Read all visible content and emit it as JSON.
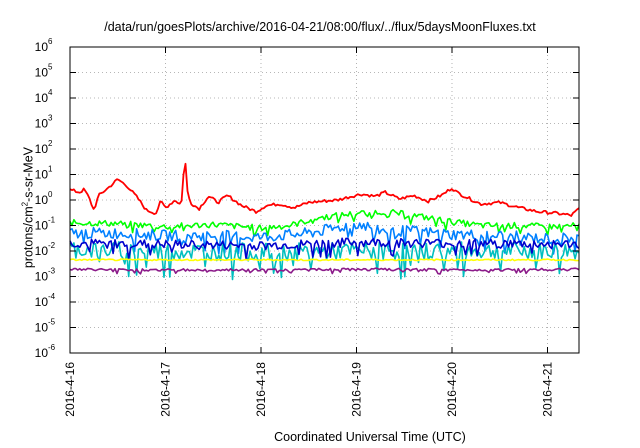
{
  "chart_data": {
    "type": "line",
    "title": "/data/run/goesPlots/archive/2016-04-21/08:00/flux/../flux/5daysMoonFluxes.txt",
    "xlabel": "Coordinated Universal Time (UTC)",
    "ylabel_main": "protons/cm",
    "ylabel_sup": "2",
    "ylabel_rest": "-s-sr-MeV",
    "y_scale": "log",
    "ylim": [
      1e-06,
      1000000.0
    ],
    "y_tick_base": "10",
    "y_tick_exponents": [
      "-6",
      "-5",
      "-4",
      "-3",
      "-2",
      "-1",
      "0",
      "1",
      "2",
      "3",
      "4",
      "5",
      "6"
    ],
    "x_ticks": [
      "2016-4-16",
      "2016-4-17",
      "2016-4-18",
      "2016-4-19",
      "2016-4-20",
      "2016-4-21"
    ],
    "xlim": [
      0,
      5.33
    ],
    "grid": true,
    "series": [
      {
        "color": "#ff0000",
        "points": [
          [
            0,
            2.5
          ],
          [
            0.1,
            2
          ],
          [
            0.15,
            2.6
          ],
          [
            0.2,
            1.2
          ],
          [
            0.25,
            0.4
          ],
          [
            0.3,
            1.5
          ],
          [
            0.4,
            3
          ],
          [
            0.5,
            6.5
          ],
          [
            0.6,
            3.5
          ],
          [
            0.7,
            1.3
          ],
          [
            0.8,
            0.4
          ],
          [
            0.9,
            0.3
          ],
          [
            0.95,
            0.9
          ],
          [
            1.0,
            0.5
          ],
          [
            1.1,
            1.0
          ],
          [
            1.15,
            0.7
          ],
          [
            1.18,
            1.1
          ],
          [
            1.2,
            180
          ],
          [
            1.22,
            3
          ],
          [
            1.26,
            0.8
          ],
          [
            1.35,
            0.45
          ],
          [
            1.45,
            1.4
          ],
          [
            1.55,
            0.8
          ],
          [
            1.65,
            1.5
          ],
          [
            1.8,
            0.6
          ],
          [
            1.95,
            0.35
          ],
          [
            2.05,
            0.6
          ],
          [
            2.2,
            0.7
          ],
          [
            2.35,
            0.5
          ],
          [
            2.5,
            0.8
          ],
          [
            2.65,
            0.9
          ],
          [
            2.8,
            1.0
          ],
          [
            2.95,
            1.4
          ],
          [
            3.05,
            1.7
          ],
          [
            3.2,
            1.4
          ],
          [
            3.3,
            2.0
          ],
          [
            3.45,
            1.1
          ],
          [
            3.6,
            1.5
          ],
          [
            3.75,
            0.9
          ],
          [
            3.9,
            1.6
          ],
          [
            4.0,
            3.0
          ],
          [
            4.05,
            2.0
          ],
          [
            4.15,
            1.3
          ],
          [
            4.3,
            0.7
          ],
          [
            4.5,
            0.8
          ],
          [
            4.7,
            0.5
          ],
          [
            4.9,
            0.35
          ],
          [
            5.1,
            0.3
          ],
          [
            5.25,
            0.25
          ],
          [
            5.33,
            0.45
          ]
        ]
      },
      {
        "color": "#00ff00",
        "points": [
          [
            0,
            0.13
          ],
          [
            0.5,
            0.12
          ],
          [
            1.0,
            0.09
          ],
          [
            1.5,
            0.11
          ],
          [
            2.0,
            0.08
          ],
          [
            2.3,
            0.1
          ],
          [
            2.6,
            0.2
          ],
          [
            3.0,
            0.3
          ],
          [
            3.3,
            0.35
          ],
          [
            3.6,
            0.25
          ],
          [
            4.0,
            0.14
          ],
          [
            4.3,
            0.1
          ],
          [
            4.7,
            0.1
          ],
          [
            5.0,
            0.09
          ],
          [
            5.33,
            0.1
          ]
        ]
      },
      {
        "color": "#0080ff",
        "points": [
          [
            0,
            0.05
          ],
          [
            0.5,
            0.05
          ],
          [
            1.0,
            0.04
          ],
          [
            1.5,
            0.04
          ],
          [
            2.0,
            0.035
          ],
          [
            2.5,
            0.05
          ],
          [
            2.8,
            0.08
          ],
          [
            3.0,
            0.12
          ],
          [
            3.3,
            0.06
          ],
          [
            3.6,
            0.06
          ],
          [
            4.0,
            0.045
          ],
          [
            4.5,
            0.04
          ],
          [
            5.0,
            0.03
          ],
          [
            5.33,
            0.035
          ]
        ]
      },
      {
        "color": "#00bfbf",
        "points": [
          [
            0,
            0.012
          ],
          [
            1.0,
            0.01
          ],
          [
            2.0,
            0.009
          ],
          [
            3.0,
            0.01
          ],
          [
            4.0,
            0.01
          ],
          [
            5.33,
            0.01
          ]
        ]
      },
      {
        "color": "#0000cd",
        "points": [
          [
            0,
            0.02
          ],
          [
            1.0,
            0.018
          ],
          [
            2.0,
            0.016
          ],
          [
            3.0,
            0.022
          ],
          [
            4.0,
            0.02
          ],
          [
            5.33,
            0.018
          ]
        ]
      },
      {
        "color": "#ffff00",
        "points": [
          [
            0,
            0.0045
          ],
          [
            1.0,
            0.0045
          ],
          [
            2.0,
            0.0045
          ],
          [
            3.0,
            0.0045
          ],
          [
            4.0,
            0.0045
          ],
          [
            5.33,
            0.0045
          ]
        ]
      },
      {
        "color": "#8b1a89",
        "points": [
          [
            0,
            0.0019
          ],
          [
            1.0,
            0.0018
          ],
          [
            2.0,
            0.0018
          ],
          [
            3.0,
            0.0019
          ],
          [
            4.0,
            0.0018
          ],
          [
            5.33,
            0.0019
          ]
        ]
      }
    ]
  }
}
